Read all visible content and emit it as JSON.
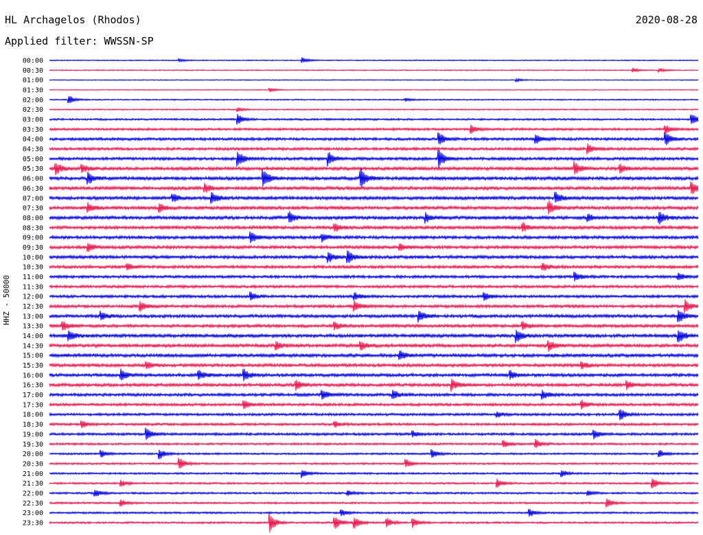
{
  "header": {
    "station": "HL Archagelos (Rhodos)",
    "date": "2020-08-28",
    "filter": "Applied filter: WWSSN-SP"
  },
  "chart_data": {
    "type": "helicorder",
    "title": "HL Archagelos (Rhodos)",
    "ylabel": "HHZ - 50000",
    "row_labels": [
      "00:00",
      "00:30",
      "01:00",
      "01:30",
      "02:00",
      "02:30",
      "03:00",
      "03:30",
      "04:00",
      "04:30",
      "05:00",
      "05:30",
      "06:00",
      "06:30",
      "07:00",
      "07:30",
      "08:00",
      "08:30",
      "09:00",
      "09:30",
      "10:00",
      "10:30",
      "11:00",
      "11:30",
      "12:00",
      "12:30",
      "13:00",
      "13:30",
      "14:00",
      "14:30",
      "15:00",
      "15:30",
      "16:00",
      "16:30",
      "17:00",
      "17:30",
      "18:00",
      "18:30",
      "19:00",
      "19:30",
      "20:00",
      "20:30",
      "21:00",
      "21:30",
      "22:00",
      "22:30",
      "23:00",
      "23:30"
    ],
    "colors": [
      "#0000e0",
      "#e8154c"
    ],
    "noise_amplitude": [
      0.5,
      0.5,
      0.4,
      0.4,
      0.6,
      0.6,
      0.9,
      1.1,
      1.3,
      1.3,
      1.4,
      1.6,
      1.6,
      1.6,
      1.6,
      1.6,
      1.6,
      1.5,
      1.5,
      1.5,
      1.5,
      1.4,
      1.3,
      1.3,
      1.3,
      1.4,
      1.5,
      1.5,
      1.6,
      1.6,
      1.6,
      1.5,
      1.5,
      1.5,
      1.4,
      1.3,
      1.2,
      1.2,
      1.2,
      1.0,
      0.9,
      0.9,
      0.9,
      0.9,
      0.9,
      0.9,
      0.9,
      0.9
    ],
    "events": [
      {
        "row": 0,
        "t": 0.39,
        "amp": 4
      },
      {
        "row": 0,
        "t": 0.2,
        "amp": 2
      },
      {
        "row": 1,
        "t": 0.9,
        "amp": 3
      },
      {
        "row": 1,
        "t": 0.94,
        "amp": 3
      },
      {
        "row": 2,
        "t": 0.72,
        "amp": 2
      },
      {
        "row": 3,
        "t": 0.34,
        "amp": 3
      },
      {
        "row": 4,
        "t": 0.03,
        "amp": 6
      },
      {
        "row": 4,
        "t": 0.55,
        "amp": 2
      },
      {
        "row": 5,
        "t": 0.29,
        "amp": 3
      },
      {
        "row": 6,
        "t": 0.29,
        "amp": 8
      },
      {
        "row": 6,
        "t": 0.99,
        "amp": 8
      },
      {
        "row": 7,
        "t": 0.65,
        "amp": 6
      },
      {
        "row": 7,
        "t": 0.95,
        "amp": 6
      },
      {
        "row": 8,
        "t": 0.75,
        "amp": 7
      },
      {
        "row": 8,
        "t": 0.95,
        "amp": 9
      },
      {
        "row": 8,
        "t": 0.6,
        "amp": 10
      },
      {
        "row": 9,
        "t": 0.83,
        "amp": 7
      },
      {
        "row": 10,
        "t": 0.29,
        "amp": 12
      },
      {
        "row": 10,
        "t": 0.43,
        "amp": 10
      },
      {
        "row": 10,
        "t": 0.6,
        "amp": 14
      },
      {
        "row": 11,
        "t": 0.01,
        "amp": 9
      },
      {
        "row": 11,
        "t": 0.05,
        "amp": 6
      },
      {
        "row": 11,
        "t": 0.81,
        "amp": 9
      },
      {
        "row": 11,
        "t": 0.88,
        "amp": 6
      },
      {
        "row": 12,
        "t": 0.06,
        "amp": 8
      },
      {
        "row": 12,
        "t": 0.33,
        "amp": 12
      },
      {
        "row": 12,
        "t": 0.48,
        "amp": 14
      },
      {
        "row": 13,
        "t": 0.24,
        "amp": 6
      },
      {
        "row": 13,
        "t": 0.99,
        "amp": 9
      },
      {
        "row": 14,
        "t": 0.19,
        "amp": 6
      },
      {
        "row": 14,
        "t": 0.25,
        "amp": 8
      },
      {
        "row": 14,
        "t": 0.78,
        "amp": 8
      },
      {
        "row": 15,
        "t": 0.06,
        "amp": 6
      },
      {
        "row": 15,
        "t": 0.17,
        "amp": 6
      },
      {
        "row": 15,
        "t": 0.77,
        "amp": 9
      },
      {
        "row": 16,
        "t": 0.37,
        "amp": 8
      },
      {
        "row": 16,
        "t": 0.58,
        "amp": 7
      },
      {
        "row": 16,
        "t": 0.83,
        "amp": 6
      },
      {
        "row": 16,
        "t": 0.94,
        "amp": 9
      },
      {
        "row": 17,
        "t": 0.44,
        "amp": 6
      },
      {
        "row": 17,
        "t": 0.73,
        "amp": 6
      },
      {
        "row": 18,
        "t": 0.31,
        "amp": 8
      },
      {
        "row": 18,
        "t": 0.42,
        "amp": 6
      },
      {
        "row": 19,
        "t": 0.06,
        "amp": 6
      },
      {
        "row": 19,
        "t": 0.54,
        "amp": 5
      },
      {
        "row": 20,
        "t": 0.43,
        "amp": 8
      },
      {
        "row": 20,
        "t": 0.46,
        "amp": 9
      },
      {
        "row": 21,
        "t": 0.12,
        "amp": 5
      },
      {
        "row": 21,
        "t": 0.76,
        "amp": 6
      },
      {
        "row": 22,
        "t": 0.81,
        "amp": 6
      },
      {
        "row": 22,
        "t": 0.97,
        "amp": 5
      },
      {
        "row": 24,
        "t": 0.31,
        "amp": 6
      },
      {
        "row": 24,
        "t": 0.47,
        "amp": 6
      },
      {
        "row": 24,
        "t": 0.67,
        "amp": 6
      },
      {
        "row": 25,
        "t": 0.47,
        "amp": 8
      },
      {
        "row": 25,
        "t": 0.14,
        "amp": 7
      },
      {
        "row": 25,
        "t": 0.98,
        "amp": 9
      },
      {
        "row": 26,
        "t": 0.08,
        "amp": 6
      },
      {
        "row": 26,
        "t": 0.57,
        "amp": 8
      },
      {
        "row": 26,
        "t": 0.97,
        "amp": 9
      },
      {
        "row": 27,
        "t": 0.02,
        "amp": 7
      },
      {
        "row": 27,
        "t": 0.44,
        "amp": 6
      },
      {
        "row": 27,
        "t": 0.73,
        "amp": 6
      },
      {
        "row": 28,
        "t": 0.03,
        "amp": 7
      },
      {
        "row": 28,
        "t": 0.72,
        "amp": 9
      },
      {
        "row": 28,
        "t": 0.97,
        "amp": 10
      },
      {
        "row": 29,
        "t": 0.35,
        "amp": 6
      },
      {
        "row": 29,
        "t": 0.48,
        "amp": 6
      },
      {
        "row": 29,
        "t": 0.77,
        "amp": 7
      },
      {
        "row": 30,
        "t": 0.54,
        "amp": 7
      },
      {
        "row": 31,
        "t": 0.15,
        "amp": 6
      },
      {
        "row": 31,
        "t": 0.82,
        "amp": 6
      },
      {
        "row": 32,
        "t": 0.11,
        "amp": 8
      },
      {
        "row": 32,
        "t": 0.23,
        "amp": 7
      },
      {
        "row": 32,
        "t": 0.3,
        "amp": 8
      },
      {
        "row": 32,
        "t": 0.71,
        "amp": 6
      },
      {
        "row": 33,
        "t": 0.38,
        "amp": 7
      },
      {
        "row": 33,
        "t": 0.62,
        "amp": 9
      },
      {
        "row": 33,
        "t": 0.89,
        "amp": 6
      },
      {
        "row": 34,
        "t": 0.42,
        "amp": 7
      },
      {
        "row": 34,
        "t": 0.53,
        "amp": 7
      },
      {
        "row": 34,
        "t": 0.76,
        "amp": 6
      },
      {
        "row": 35,
        "t": 0.3,
        "amp": 6
      },
      {
        "row": 35,
        "t": 0.82,
        "amp": 6
      },
      {
        "row": 36,
        "t": 0.69,
        "amp": 4
      },
      {
        "row": 36,
        "t": 0.88,
        "amp": 8
      },
      {
        "row": 37,
        "t": 0.05,
        "amp": 5
      },
      {
        "row": 37,
        "t": 0.44,
        "amp": 4
      },
      {
        "row": 38,
        "t": 0.15,
        "amp": 8
      },
      {
        "row": 38,
        "t": 0.56,
        "amp": 4
      },
      {
        "row": 38,
        "t": 0.84,
        "amp": 6
      },
      {
        "row": 39,
        "t": 0.7,
        "amp": 6
      },
      {
        "row": 39,
        "t": 0.75,
        "amp": 6
      },
      {
        "row": 40,
        "t": 0.08,
        "amp": 5
      },
      {
        "row": 40,
        "t": 0.17,
        "amp": 7
      },
      {
        "row": 40,
        "t": 0.59,
        "amp": 6
      },
      {
        "row": 40,
        "t": 0.94,
        "amp": 6
      },
      {
        "row": 41,
        "t": 0.2,
        "amp": 9
      },
      {
        "row": 41,
        "t": 0.55,
        "amp": 6
      },
      {
        "row": 42,
        "t": 0.39,
        "amp": 6
      },
      {
        "row": 42,
        "t": 0.79,
        "amp": 5
      },
      {
        "row": 43,
        "t": 0.11,
        "amp": 5
      },
      {
        "row": 43,
        "t": 0.69,
        "amp": 6
      },
      {
        "row": 43,
        "t": 0.93,
        "amp": 8
      },
      {
        "row": 44,
        "t": 0.07,
        "amp": 6
      },
      {
        "row": 44,
        "t": 0.46,
        "amp": 4
      },
      {
        "row": 44,
        "t": 0.83,
        "amp": 4
      },
      {
        "row": 45,
        "t": 0.11,
        "amp": 5
      },
      {
        "row": 45,
        "t": 0.86,
        "amp": 6
      },
      {
        "row": 46,
        "t": 0.74,
        "amp": 6
      },
      {
        "row": 46,
        "t": 0.45,
        "amp": 5
      },
      {
        "row": 47,
        "t": 0.34,
        "amp": 14
      },
      {
        "row": 47,
        "t": 0.44,
        "amp": 10
      },
      {
        "row": 47,
        "t": 0.47,
        "amp": 9
      },
      {
        "row": 47,
        "t": 0.52,
        "amp": 7
      },
      {
        "row": 47,
        "t": 0.56,
        "amp": 8
      }
    ]
  }
}
